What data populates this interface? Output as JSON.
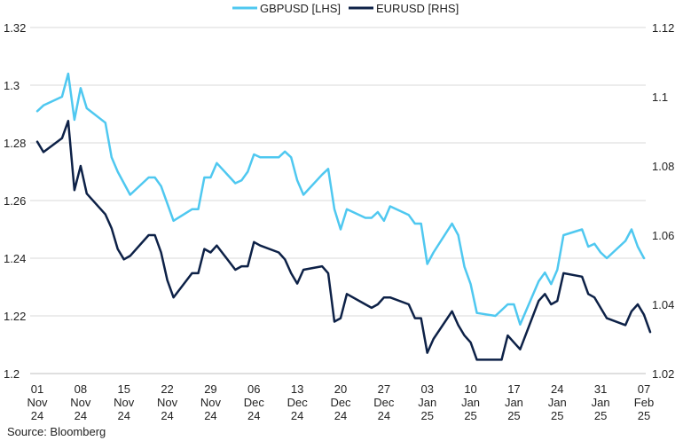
{
  "chart_data": {
    "type": "line",
    "legend_position": "top-center",
    "grid": "horizontal",
    "source": "Source: Bloomberg",
    "y_left": {
      "min": 1.2,
      "max": 1.32,
      "step": 0.02,
      "ticks": [
        "1.2",
        "1.22",
        "1.24",
        "1.26",
        "1.28",
        "1.3",
        "1.32"
      ]
    },
    "y_right": {
      "min": 1.02,
      "max": 1.12,
      "step": 0.02,
      "ticks": [
        "1.02",
        "1.04",
        "1.06",
        "1.08",
        "1.1",
        "1.12"
      ]
    },
    "x_range": [
      "2024-11-01",
      "2025-02-07"
    ],
    "x_ticks": [
      {
        "date": "2024-11-01",
        "label": [
          "01",
          "Nov",
          "24"
        ]
      },
      {
        "date": "2024-11-08",
        "label": [
          "08",
          "Nov",
          "24"
        ]
      },
      {
        "date": "2024-11-15",
        "label": [
          "15",
          "Nov",
          "24"
        ]
      },
      {
        "date": "2024-11-22",
        "label": [
          "22",
          "Nov",
          "24"
        ]
      },
      {
        "date": "2024-11-29",
        "label": [
          "29",
          "Nov",
          "24"
        ]
      },
      {
        "date": "2024-12-06",
        "label": [
          "06",
          "Dec",
          "24"
        ]
      },
      {
        "date": "2024-12-13",
        "label": [
          "13",
          "Dec",
          "24"
        ]
      },
      {
        "date": "2024-12-20",
        "label": [
          "20",
          "Dec",
          "24"
        ]
      },
      {
        "date": "2024-12-27",
        "label": [
          "27",
          "Dec",
          "24"
        ]
      },
      {
        "date": "2025-01-03",
        "label": [
          "03",
          "Jan",
          "25"
        ]
      },
      {
        "date": "2025-01-10",
        "label": [
          "10",
          "Jan",
          "25"
        ]
      },
      {
        "date": "2025-01-17",
        "label": [
          "17",
          "Jan",
          "25"
        ]
      },
      {
        "date": "2025-01-24",
        "label": [
          "24",
          "Jan",
          "25"
        ]
      },
      {
        "date": "2025-01-31",
        "label": [
          "31",
          "Jan",
          "25"
        ]
      },
      {
        "date": "2025-02-07",
        "label": [
          "07",
          "Feb",
          "25"
        ]
      }
    ],
    "series": [
      {
        "name": "GBPUSD [LHS]",
        "axis": "left",
        "color": "#4fc8f0",
        "points": [
          [
            "2024-11-01",
            1.291
          ],
          [
            "2024-11-02",
            1.293
          ],
          [
            "2024-11-05",
            1.296
          ],
          [
            "2024-11-06",
            1.304
          ],
          [
            "2024-11-07",
            1.288
          ],
          [
            "2024-11-08",
            1.299
          ],
          [
            "2024-11-09",
            1.292
          ],
          [
            "2024-11-12",
            1.287
          ],
          [
            "2024-11-13",
            1.275
          ],
          [
            "2024-11-14",
            1.27
          ],
          [
            "2024-11-15",
            1.266
          ],
          [
            "2024-11-16",
            1.262
          ],
          [
            "2024-11-19",
            1.268
          ],
          [
            "2024-11-20",
            1.268
          ],
          [
            "2024-11-21",
            1.265
          ],
          [
            "2024-11-22",
            1.259
          ],
          [
            "2024-11-23",
            1.253
          ],
          [
            "2024-11-26",
            1.257
          ],
          [
            "2024-11-27",
            1.257
          ],
          [
            "2024-11-28",
            1.268
          ],
          [
            "2024-11-29",
            1.268
          ],
          [
            "2024-11-30",
            1.273
          ],
          [
            "2024-12-03",
            1.266
          ],
          [
            "2024-12-04",
            1.267
          ],
          [
            "2024-12-05",
            1.27
          ],
          [
            "2024-12-06",
            1.276
          ],
          [
            "2024-12-07",
            1.275
          ],
          [
            "2024-12-10",
            1.275
          ],
          [
            "2024-12-11",
            1.277
          ],
          [
            "2024-12-12",
            1.275
          ],
          [
            "2024-12-13",
            1.267
          ],
          [
            "2024-12-14",
            1.262
          ],
          [
            "2024-12-17",
            1.269
          ],
          [
            "2024-12-18",
            1.271
          ],
          [
            "2024-12-19",
            1.257
          ],
          [
            "2024-12-20",
            1.25
          ],
          [
            "2024-12-21",
            1.257
          ],
          [
            "2024-12-24",
            1.254
          ],
          [
            "2024-12-25",
            1.254
          ],
          [
            "2024-12-26",
            1.256
          ],
          [
            "2024-12-27",
            1.253
          ],
          [
            "2024-12-28",
            1.258
          ],
          [
            "2024-12-31",
            1.255
          ],
          [
            "2025-01-01",
            1.252
          ],
          [
            "2025-01-02",
            1.252
          ],
          [
            "2025-01-03",
            1.238
          ],
          [
            "2025-01-04",
            1.242
          ],
          [
            "2025-01-07",
            1.252
          ],
          [
            "2025-01-08",
            1.248
          ],
          [
            "2025-01-09",
            1.237
          ],
          [
            "2025-01-10",
            1.231
          ],
          [
            "2025-01-11",
            1.221
          ],
          [
            "2025-01-14",
            1.22
          ],
          [
            "2025-01-15",
            1.222
          ],
          [
            "2025-01-16",
            1.224
          ],
          [
            "2025-01-17",
            1.224
          ],
          [
            "2025-01-18",
            1.217
          ],
          [
            "2025-01-21",
            1.232
          ],
          [
            "2025-01-22",
            1.235
          ],
          [
            "2025-01-23",
            1.231
          ],
          [
            "2025-01-24",
            1.236
          ],
          [
            "2025-01-25",
            1.248
          ],
          [
            "2025-01-28",
            1.25
          ],
          [
            "2025-01-29",
            1.244
          ],
          [
            "2025-01-30",
            1.245
          ],
          [
            "2025-01-31",
            1.242
          ],
          [
            "2025-02-01",
            1.24
          ],
          [
            "2025-02-04",
            1.246
          ],
          [
            "2025-02-05",
            1.25
          ],
          [
            "2025-02-06",
            1.244
          ],
          [
            "2025-02-07",
            1.24
          ]
        ]
      },
      {
        "name": "EURUSD [RHS]",
        "axis": "right",
        "color": "#0d2147",
        "points": [
          [
            "2024-11-01",
            1.087
          ],
          [
            "2024-11-02",
            1.084
          ],
          [
            "2024-11-05",
            1.088
          ],
          [
            "2024-11-06",
            1.093
          ],
          [
            "2024-11-07",
            1.073
          ],
          [
            "2024-11-08",
            1.08
          ],
          [
            "2024-11-09",
            1.072
          ],
          [
            "2024-11-12",
            1.066
          ],
          [
            "2024-11-13",
            1.062
          ],
          [
            "2024-11-14",
            1.056
          ],
          [
            "2024-11-15",
            1.053
          ],
          [
            "2024-11-16",
            1.054
          ],
          [
            "2024-11-19",
            1.06
          ],
          [
            "2024-11-20",
            1.06
          ],
          [
            "2024-11-21",
            1.055
          ],
          [
            "2024-11-22",
            1.047
          ],
          [
            "2024-11-23",
            1.042
          ],
          [
            "2024-11-26",
            1.049
          ],
          [
            "2024-11-27",
            1.049
          ],
          [
            "2024-11-28",
            1.056
          ],
          [
            "2024-11-29",
            1.055
          ],
          [
            "2024-11-30",
            1.057
          ],
          [
            "2024-12-03",
            1.05
          ],
          [
            "2024-12-04",
            1.051
          ],
          [
            "2024-12-05",
            1.051
          ],
          [
            "2024-12-06",
            1.058
          ],
          [
            "2024-12-07",
            1.057
          ],
          [
            "2024-12-10",
            1.055
          ],
          [
            "2024-12-11",
            1.053
          ],
          [
            "2024-12-12",
            1.049
          ],
          [
            "2024-12-13",
            1.046
          ],
          [
            "2024-12-14",
            1.05
          ],
          [
            "2024-12-17",
            1.051
          ],
          [
            "2024-12-18",
            1.049
          ],
          [
            "2024-12-19",
            1.035
          ],
          [
            "2024-12-20",
            1.036
          ],
          [
            "2024-12-21",
            1.043
          ],
          [
            "2024-12-24",
            1.04
          ],
          [
            "2024-12-25",
            1.039
          ],
          [
            "2024-12-26",
            1.04
          ],
          [
            "2024-12-27",
            1.042
          ],
          [
            "2024-12-28",
            1.042
          ],
          [
            "2024-12-31",
            1.04
          ],
          [
            "2025-01-01",
            1.036
          ],
          [
            "2025-01-02",
            1.036
          ],
          [
            "2025-01-03",
            1.026
          ],
          [
            "2025-01-04",
            1.03
          ],
          [
            "2025-01-07",
            1.038
          ],
          [
            "2025-01-08",
            1.034
          ],
          [
            "2025-01-09",
            1.031
          ],
          [
            "2025-01-10",
            1.029
          ],
          [
            "2025-01-11",
            1.024
          ],
          [
            "2025-01-14",
            1.024
          ],
          [
            "2025-01-15",
            1.024
          ],
          [
            "2025-01-16",
            1.031
          ],
          [
            "2025-01-17",
            1.029
          ],
          [
            "2025-01-18",
            1.027
          ],
          [
            "2025-01-21",
            1.041
          ],
          [
            "2025-01-22",
            1.043
          ],
          [
            "2025-01-23",
            1.04
          ],
          [
            "2025-01-24",
            1.041
          ],
          [
            "2025-01-25",
            1.049
          ],
          [
            "2025-01-28",
            1.048
          ],
          [
            "2025-01-29",
            1.043
          ],
          [
            "2025-01-30",
            1.042
          ],
          [
            "2025-01-31",
            1.039
          ],
          [
            "2025-02-01",
            1.036
          ],
          [
            "2025-02-04",
            1.034
          ],
          [
            "2025-02-05",
            1.038
          ],
          [
            "2025-02-06",
            1.04
          ],
          [
            "2025-02-07",
            1.037
          ],
          [
            "2025-02-08",
            1.032
          ]
        ]
      }
    ]
  }
}
